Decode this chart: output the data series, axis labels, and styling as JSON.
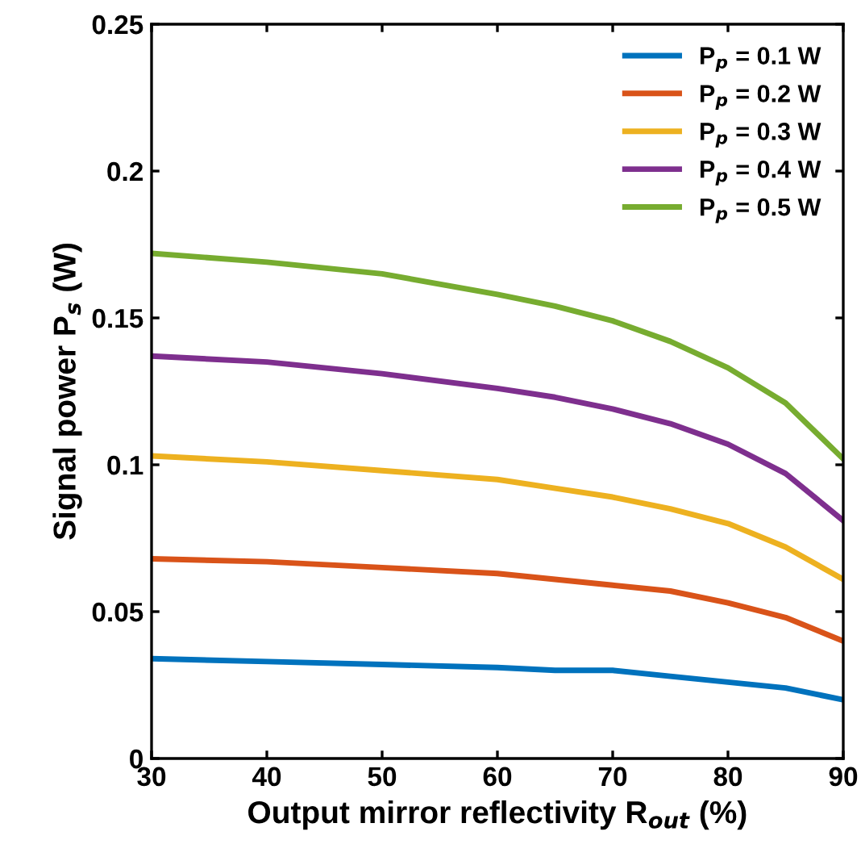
{
  "chart_data": {
    "type": "line",
    "xlabel": "Output mirror reflectivity R$_{out}$ (%)",
    "ylabel": "Signal power P$_{s}$ (W)",
    "x": [
      30,
      40,
      50,
      60,
      65,
      70,
      75,
      80,
      85,
      90
    ],
    "series": [
      {
        "name": "P$_{p}$ = 0.1 W",
        "color": "#0072bd",
        "values": [
          0.034,
          0.033,
          0.032,
          0.031,
          0.03,
          0.03,
          0.028,
          0.026,
          0.024,
          0.02
        ]
      },
      {
        "name": "P$_{p}$ = 0.2 W",
        "color": "#d95319",
        "values": [
          0.068,
          0.067,
          0.065,
          0.063,
          0.061,
          0.059,
          0.057,
          0.053,
          0.048,
          0.04
        ]
      },
      {
        "name": "P$_{p}$ = 0.3 W",
        "color": "#edb120",
        "values": [
          0.103,
          0.101,
          0.098,
          0.095,
          0.092,
          0.089,
          0.085,
          0.08,
          0.072,
          0.061
        ]
      },
      {
        "name": "P$_{p}$ = 0.4 W",
        "color": "#7e2f8e",
        "values": [
          0.137,
          0.135,
          0.131,
          0.126,
          0.123,
          0.119,
          0.114,
          0.107,
          0.097,
          0.081
        ]
      },
      {
        "name": "P$_{p}$ = 0.5 W",
        "color": "#77ac30",
        "values": [
          0.172,
          0.169,
          0.165,
          0.158,
          0.154,
          0.149,
          0.142,
          0.133,
          0.121,
          0.102
        ]
      }
    ],
    "xlim": [
      30,
      90
    ],
    "xticks": [
      30,
      40,
      50,
      60,
      70,
      80,
      90
    ],
    "ylim": [
      0,
      0.25
    ],
    "yticks": [
      0,
      0.05,
      0.1,
      0.15,
      0.2,
      0.25
    ],
    "grid": false,
    "legend": "top right",
    "marker": "none",
    "line_style": "solid"
  }
}
